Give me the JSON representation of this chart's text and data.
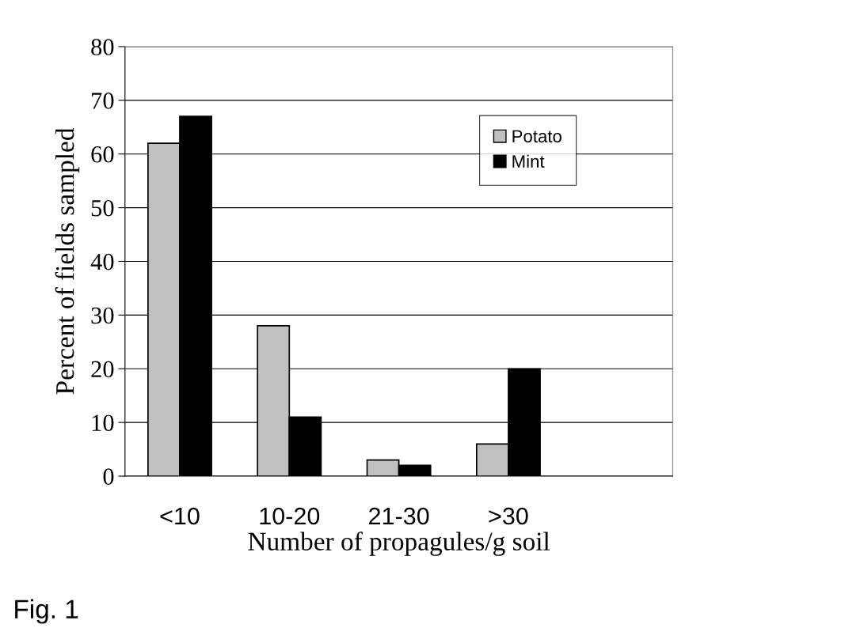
{
  "chart_data": {
    "type": "bar",
    "categories": [
      "<10",
      "10-20",
      "21-30",
      ">30",
      null
    ],
    "series": [
      {
        "name": "Potato",
        "color": "#c0c0c0",
        "values": [
          62,
          28,
          3,
          6,
          null
        ]
      },
      {
        "name": "Mint",
        "color": "#000000",
        "values": [
          67,
          11,
          2,
          20,
          null
        ]
      }
    ],
    "xlabel": "Number of propagules/g soil",
    "ylabel": "Percent of fields sampled",
    "ylim": [
      0,
      80
    ],
    "yticks": [
      0,
      10,
      20,
      30,
      40,
      50,
      60,
      70,
      80
    ],
    "grid": "y",
    "legend": "top right",
    "annotations": [
      "Fig. 1"
    ]
  }
}
